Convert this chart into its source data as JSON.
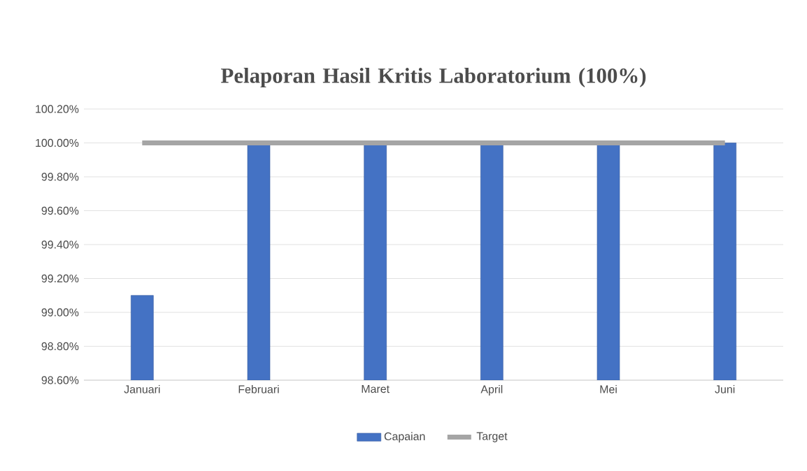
{
  "chart_data": {
    "type": "bar",
    "title": "Pelaporan Hasil Kritis Laboratorium (100%)",
    "categories": [
      "Januari",
      "Februari",
      "Maret",
      "April",
      "Mei",
      "Juni"
    ],
    "series": [
      {
        "name": "Capaian",
        "color": "#4472c4",
        "values": [
          99.1,
          100,
          100,
          100,
          100,
          100
        ]
      },
      {
        "name": "Target",
        "type": "line",
        "color": "#a5a5a5",
        "values": [
          100,
          100,
          100,
          100,
          100,
          100
        ]
      }
    ],
    "ylim": [
      98.6,
      100.2
    ],
    "yticks": [
      {
        "value": 98.6,
        "label": "98.60%"
      },
      {
        "value": 98.8,
        "label": "98.80%"
      },
      {
        "value": 99.0,
        "label": "99.00%"
      },
      {
        "value": 99.2,
        "label": "99.20%"
      },
      {
        "value": 99.4,
        "label": "99.40%"
      },
      {
        "value": 99.6,
        "label": "99.60%"
      },
      {
        "value": 99.8,
        "label": "99.80%"
      },
      {
        "value": 100.0,
        "label": "100.00%"
      },
      {
        "value": 100.2,
        "label": "100.20%"
      }
    ],
    "grid": "y",
    "legend": "bottom",
    "marker": "none"
  }
}
